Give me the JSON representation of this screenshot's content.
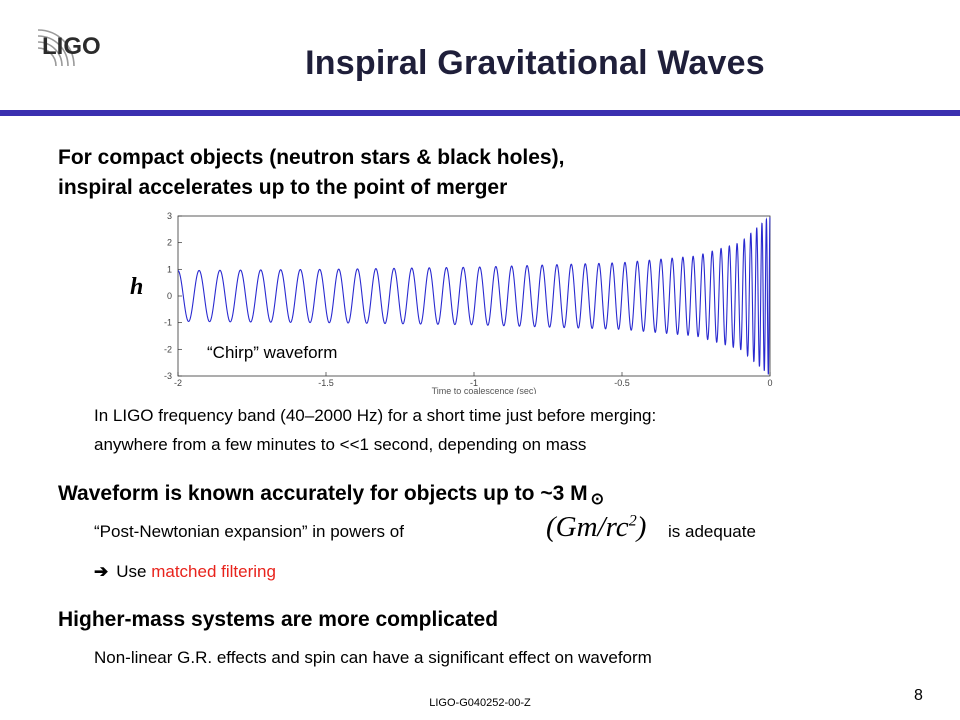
{
  "slide": {
    "logo_text": "LIGO",
    "title": "Inspiral Gravitational Waves",
    "intro_line1": "For compact objects (neutron stars & black holes),",
    "intro_line2": "inspiral accelerates up to the point of merger",
    "band_line1": "In LIGO frequency band (40–2000 Hz) for a short time just before merging:",
    "band_line2": "anywhere from a few minutes to <<1 second, depending on mass",
    "waveform_known": "Waveform is known accurately for objects up to ~3 M",
    "sun_symbol": "⊙",
    "pn_pre": "“Post-Newtonian expansion” in powers of",
    "formula_main": "(Gm/rc",
    "formula_sup": "2",
    "formula_close": ")",
    "pn_post": "is adequate",
    "use_arrow": "➔",
    "use_prefix": "Use",
    "matched_filtering": "matched filtering",
    "higher_mass": "Higher-mass systems are more complicated",
    "nonlinear": "Non-linear G.R. effects and spin can have a significant effect on waveform",
    "doc_id": "LIGO-G040252-00-Z",
    "page_number": "8",
    "colors": {
      "title_bar": "#3b30b0",
      "waveform": "#2a2ad0",
      "highlight": "#e8231c",
      "title": "#1f1f3a"
    }
  },
  "chart_data": {
    "type": "line",
    "title": "",
    "xlabel": "Time to coalescence (sec)",
    "ylabel": "h",
    "annotation": "“Chirp” waveform",
    "xlim": [
      -2,
      0
    ],
    "ylim": [
      -3,
      3
    ],
    "x_ticks": [
      "-2",
      "-1.5",
      "-1",
      "-0.5",
      "0"
    ],
    "x_tick_values": [
      -2,
      -1.5,
      -1,
      -0.5,
      0
    ],
    "y_ticks": [
      "3",
      "2",
      "1",
      "0",
      "-1",
      "-2",
      "-3"
    ],
    "y_tick_values": [
      3,
      2,
      1,
      0,
      -1,
      -2,
      -3
    ],
    "grid": false,
    "series": [
      {
        "function": "h(t) = A(t)·cos(phase(t)), chirp with amplitude rising from ~0.95 at t=-2 to ~3 at t=0 and frequency rising toward coalescence",
        "amplitude_at_t": [
          [
            -2,
            0.95
          ],
          [
            -1.5,
            1.0
          ],
          [
            -1,
            1.08
          ],
          [
            -0.5,
            1.25
          ],
          [
            -0.25,
            1.5
          ],
          [
            -0.1,
            2.0
          ],
          [
            0,
            3.0
          ]
        ],
        "cycles_in_window": 43
      }
    ]
  }
}
